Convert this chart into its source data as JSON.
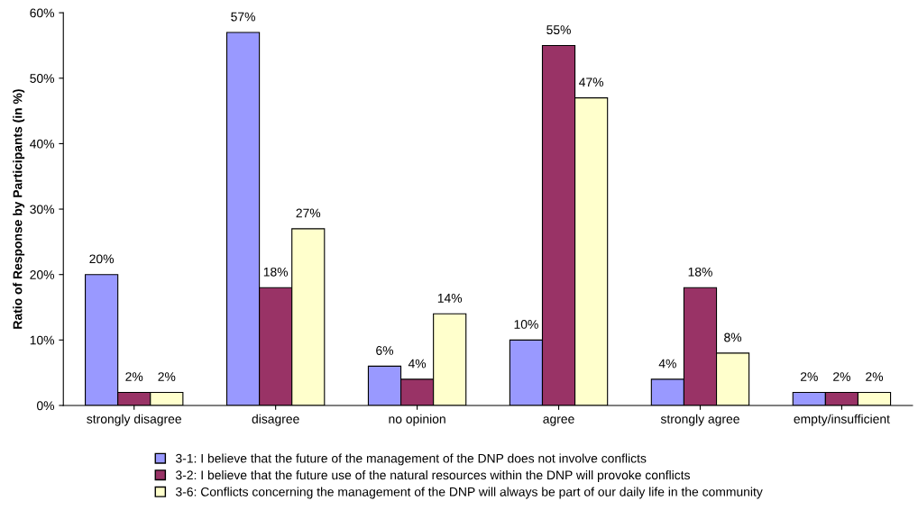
{
  "chart_data": {
    "type": "bar",
    "ylabel": "Ratio of Response by Participants (in %)",
    "categories": [
      "strongly disagree",
      "disagree",
      "no opinion",
      "agree",
      "strongly agree",
      "empty/insufficient"
    ],
    "series": [
      {
        "name": "3-1: I believe that the future of the management of the DNP does not involve conflicts",
        "color": "#9999ff",
        "values": [
          20,
          57,
          6,
          10,
          4,
          2
        ],
        "value_labels": [
          "20%",
          "57%",
          "6%",
          "10%",
          "4%",
          "2%"
        ]
      },
      {
        "name": "3-2: I believe that the future use of the natural resources within the DNP will provoke conflicts",
        "color": "#993366",
        "values": [
          2,
          18,
          4,
          55,
          18,
          2
        ],
        "value_labels": [
          "2%",
          "18%",
          "4%",
          "55%",
          "18%",
          "2%"
        ]
      },
      {
        "name": "3-6: Conflicts concerning the management of the DNP will always be part of our daily life in the community",
        "color": "#ffffcc",
        "values": [
          2,
          27,
          14,
          47,
          8,
          2
        ],
        "value_labels": [
          "2%",
          "27%",
          "14%",
          "47%",
          "8%",
          "2%"
        ]
      }
    ],
    "ylim": [
      0,
      60
    ],
    "yticks": [
      {
        "value": 0,
        "label": "0%"
      },
      {
        "value": 10,
        "label": "10%"
      },
      {
        "value": 20,
        "label": "20%"
      },
      {
        "value": 30,
        "label": "30%"
      },
      {
        "value": 40,
        "label": "40%"
      },
      {
        "value": 50,
        "label": "50%"
      },
      {
        "value": 60,
        "label": "60%"
      }
    ],
    "grid": false,
    "legend": "bottom"
  }
}
